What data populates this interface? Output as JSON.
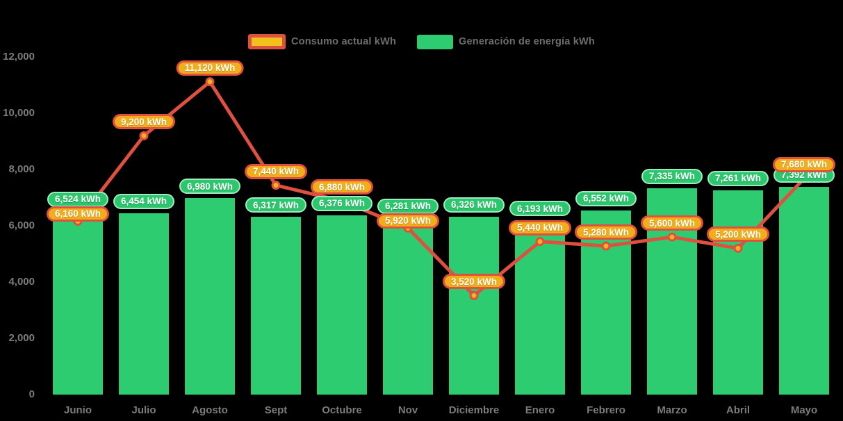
{
  "legend": {
    "items": [
      {
        "label": "Consumo actual kWh"
      },
      {
        "label": "Generación de energía kWh"
      }
    ]
  },
  "colors": {
    "background": "#000000",
    "bar_green": "#2ecc71",
    "badge_green_fill": "#2bc76d",
    "badge_green_border": "#9febc0",
    "line_red": "#e0503f",
    "marker_fill": "#f5b31b",
    "badge_orange_fill": "#f2ae19",
    "legend_swatch_yellow": "#f0c01c",
    "axis_text": "#7c7c7c",
    "legend_text": "#6e6e6e",
    "badge_text": "#ffffff"
  },
  "chart_data": {
    "type": "combo-bar-line",
    "title": "",
    "xlabel": "",
    "ylabel": "",
    "grid": false,
    "legend_position": "top-center",
    "ylim": [
      0,
      12000
    ],
    "yticks": {
      "values": [
        0,
        2000,
        4000,
        6000,
        8000,
        10000,
        12000
      ],
      "labels": [
        "0",
        "2,000",
        "4,000",
        "6,000",
        "8,000",
        "10,000",
        "12,000"
      ]
    },
    "categories": [
      "Junio",
      "Julio",
      "Agosto",
      "Sept",
      "Octubre",
      "Nov",
      "Diciembre",
      "Enero",
      "Febrero",
      "Marzo",
      "Abril",
      "Mayo"
    ],
    "series": [
      {
        "name": "Consumo actual kWh",
        "type": "line",
        "color": "#e0503f",
        "marker_fill": "#f5b31b",
        "values": [
          6160,
          9200,
          11120,
          7440,
          6880,
          5920,
          3520,
          5440,
          5280,
          5600,
          5200,
          7680
        ],
        "labels": [
          "6,160 kWh",
          "9,200 kWh",
          "11,120 kWh",
          "7,440 kWh",
          "6,880 kWh",
          "5,920 kWh",
          "3,520 kWh",
          "5,440 kWh",
          "5,280 kWh",
          "5,600 kWh",
          "5,200 kWh",
          "7,680 kWh"
        ]
      },
      {
        "name": "Generación de energía kWh",
        "type": "bar",
        "color": "#2ecc71",
        "values": [
          6524,
          6454,
          6980,
          6317,
          6376,
          6281,
          6326,
          6193,
          6552,
          7335,
          7261,
          7392
        ],
        "labels": [
          "6,524 kWh",
          "6,454 kWh",
          "6,980 kWh",
          "6,317 kWh",
          "6,376 kWh",
          "6,281 kWh",
          "6,326 kWh",
          "6,193 kWh",
          "6,552 kWh",
          "7,335 kWh",
          "7,261 kWh",
          "7,392 kWh"
        ]
      }
    ]
  }
}
